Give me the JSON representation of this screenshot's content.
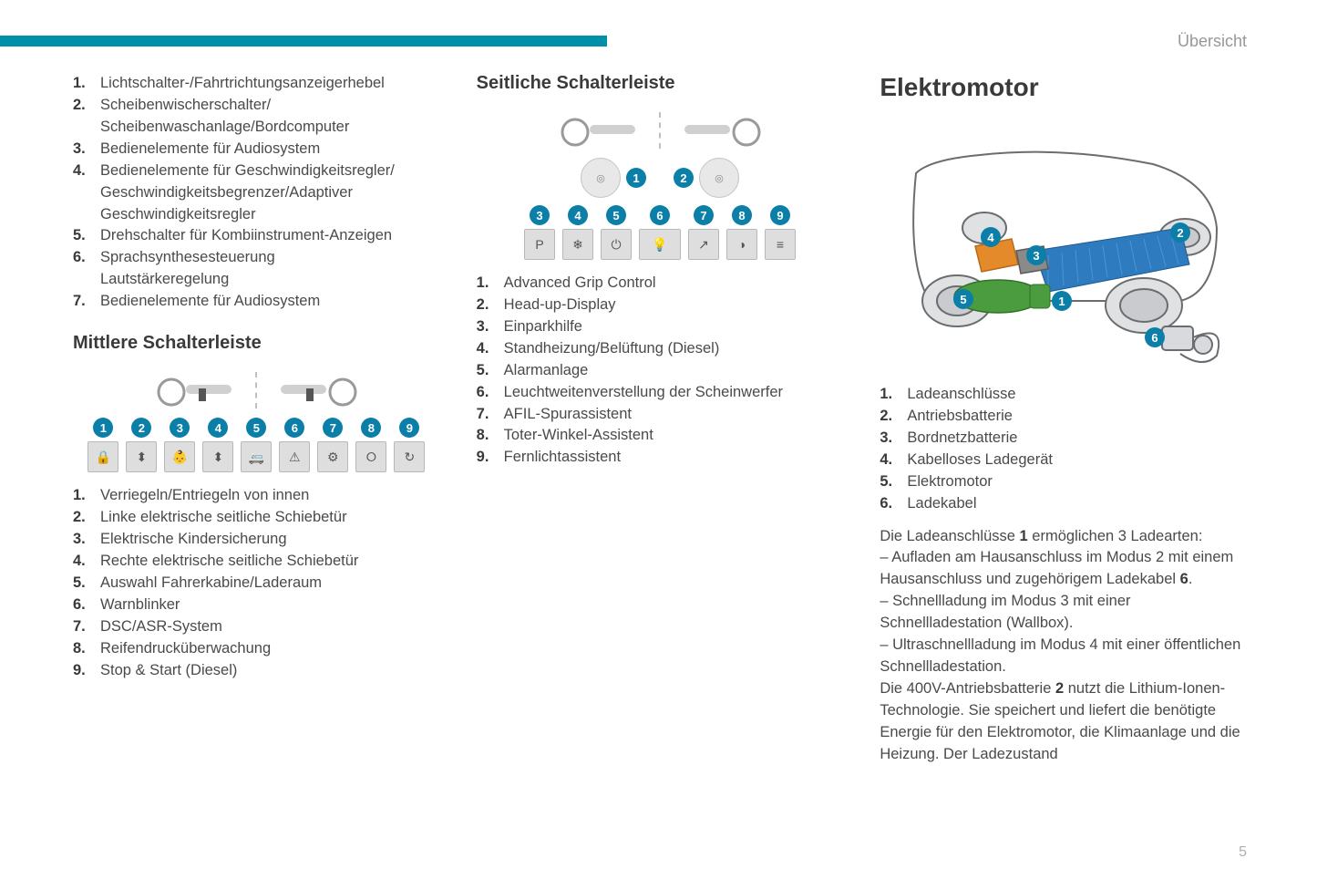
{
  "header": {
    "section": "Übersicht",
    "page": "5"
  },
  "colors": {
    "accent": "#008fa8",
    "badge": "#0b7fa8",
    "text": "#4a4a4a",
    "heading": "#3a3a3a",
    "muted": "#989898",
    "tile_bg": "#dedede",
    "tile_border": "#b8b8b8",
    "car_body": "#d8dadd",
    "car_outline": "#6a6d70",
    "battery": "#2f7bbf",
    "motor": "#4a9c3f",
    "charger": "#e58a2a",
    "aux_batt": "#7d7d7d"
  },
  "col1": {
    "list_top": [
      "Lichtschalter-/Fahrtrichtungsanzeigerhebel",
      "Scheibenwischerschalter/\nScheibenwaschanlage/Bordcomputer",
      "Bedienelemente für Audiosystem",
      "Bedienelemente für Geschwindigkeitsregler/\nGeschwindigkeitsbegrenzer/Adaptiver\nGeschwindigkeitsregler",
      "Drehschalter für Kombiinstrument-Anzeigen",
      "Sprachsynthesesteuerung\nLautstärkeregelung",
      "Bedienelemente für Audiosystem"
    ],
    "heading_mid": "Mittlere Schalterleiste",
    "tiles_mid": [
      "🔒",
      "⬍",
      "👶",
      "⬍",
      "🚐",
      "⚠",
      "⚙",
      "⭘",
      "↻"
    ],
    "list_mid": [
      "Verriegeln/Entriegeln von innen",
      "Linke elektrische seitliche Schiebetür",
      "Elektrische Kindersicherung",
      "Rechte elektrische seitliche Schiebetür",
      "Auswahl Fahrerkabine/Laderaum",
      "Warnblinker",
      "DSC/ASR-System",
      "Reifendrucküberwachung",
      "Stop & Start (Diesel)"
    ]
  },
  "col2": {
    "heading_side": "Seitliche Schalterleiste",
    "tiles_side_top": [
      "3",
      "4",
      "5"
    ],
    "tiles_side_mid": [
      "6"
    ],
    "tiles_side_right": [
      "7",
      "8",
      "9"
    ],
    "tile_glyphs": {
      "3": "P",
      "4": "❄",
      "5": "⏻",
      "6": "💡",
      "7": "↗",
      "8": "◑",
      "9": "≡"
    },
    "list_side": [
      "Advanced Grip Control",
      "Head-up-Display",
      "Einparkhilfe",
      "Standheizung/Belüftung (Diesel)",
      "Alarmanlage",
      "Leuchtweitenverstellung der Scheinwerfer",
      "AFIL-Spurassistent",
      "Toter-Winkel-Assistent",
      "Fernlichtassistent"
    ]
  },
  "col3": {
    "heading": "Elektromotor",
    "list": [
      "Ladeanschlüsse",
      "Antriebsbatterie",
      "Bordnetzbatterie",
      "Kabelloses Ladegerät",
      "Elektromotor",
      "Ladekabel"
    ],
    "para": "Die Ladeanschlüsse <b>1</b> ermöglichen 3 Ladearten:<br>– Aufladen am Hausanschluss im Modus 2 mit einem Hausanschluss und zugehörigem Ladekabel <b>6</b>.<br>– Schnellladung im Modus 3 mit einer Schnellladestation (Wallbox).<br>– Ultraschnellladung im Modus 4 mit einer öffentlichen Schnellladestation.<br>Die 400V-Antriebsbatterie <b>2</b> nutzt die Lithium-Ionen-Technologie. Sie speichert und liefert die benötigte Energie für den Elektromotor, die Klimaanlage und die Heizung. Der Ladezustand"
  }
}
